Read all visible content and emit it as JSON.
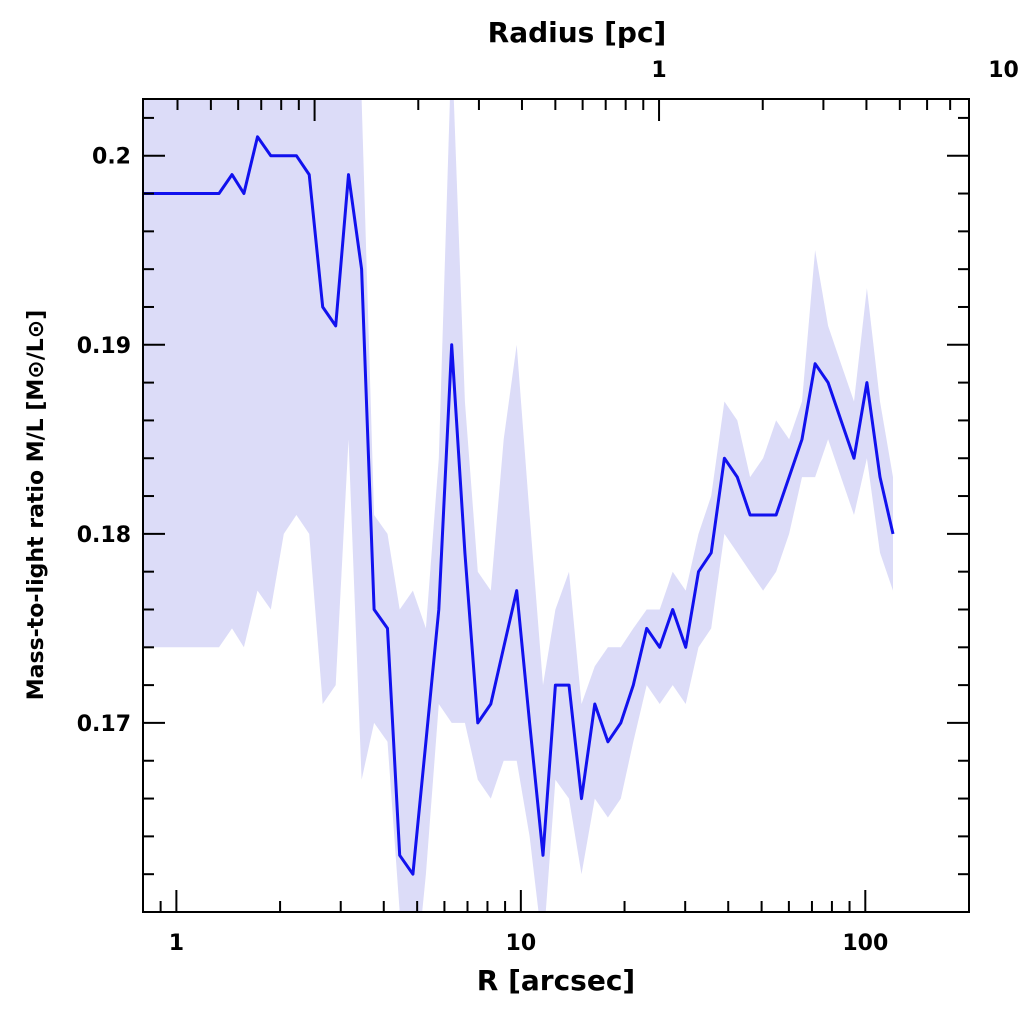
{
  "chart_data": {
    "type": "line",
    "xlabel": "R [arcsec]",
    "x2label": "Radius [pc]",
    "ylabel": "Mass-to-light ratio M/L [M⊙/L⊙]",
    "xscale": "log",
    "xlim": [
      0.8,
      200
    ],
    "ylim": [
      0.16,
      0.203
    ],
    "x2_factor": 0.0397,
    "x_ticks": [
      {
        "v": 1,
        "label": "1"
      },
      {
        "v": 10,
        "label": "10"
      },
      {
        "v": 100,
        "label": "100"
      }
    ],
    "x2_ticks": [
      {
        "v": 1,
        "label": "1"
      },
      {
        "v": 10,
        "label": "10"
      }
    ],
    "y_ticks": [
      {
        "v": 0.17,
        "label": "0.17"
      },
      {
        "v": 0.18,
        "label": "0.18"
      },
      {
        "v": 0.19,
        "label": "0.19"
      },
      {
        "v": 0.2,
        "label": "0.2"
      }
    ],
    "line_color": "#1111ee",
    "band_color": "#dcdcf8",
    "series": [
      {
        "x": [
          0.8,
          1.0,
          1.2,
          1.33,
          1.45,
          1.57,
          1.72,
          1.88,
          2.05,
          2.23,
          2.43,
          2.66,
          2.9,
          3.16,
          3.45,
          3.75,
          4.1,
          4.45,
          4.86,
          5.3,
          5.78,
          6.3,
          6.88,
          7.5,
          8.18,
          8.92,
          9.73,
          10.6,
          11.6,
          12.6,
          13.8,
          15.0,
          16.4,
          17.9,
          19.5,
          21.2,
          23.2,
          25.3,
          27.6,
          30.1,
          32.8,
          35.7,
          39.0,
          42.5,
          46.3,
          50.5,
          55.1,
          60.1,
          65.5,
          71.5,
          78.0,
          85.0,
          92.7,
          101.1,
          110.3,
          120.3
        ],
        "y": [
          0.198,
          0.198,
          0.198,
          0.198,
          0.199,
          0.198,
          0.201,
          0.2,
          0.2,
          0.2,
          0.199,
          0.192,
          0.191,
          0.199,
          0.194,
          0.176,
          0.175,
          0.163,
          0.162,
          0.169,
          0.176,
          0.19,
          0.179,
          0.17,
          0.171,
          0.174,
          0.177,
          0.17,
          0.163,
          0.172,
          0.172,
          0.166,
          0.171,
          0.169,
          0.17,
          0.172,
          0.175,
          0.174,
          0.176,
          0.174,
          0.178,
          0.179,
          0.184,
          0.183,
          0.181,
          0.181,
          0.181,
          0.183,
          0.185,
          0.189,
          0.188,
          0.186,
          0.184,
          0.188,
          0.183,
          0.18
        ],
        "lower": [
          0.174,
          0.174,
          0.174,
          0.174,
          0.175,
          0.174,
          0.177,
          0.176,
          0.18,
          0.181,
          0.18,
          0.171,
          0.172,
          0.185,
          0.167,
          0.17,
          0.169,
          0.16,
          0.155,
          0.162,
          0.171,
          0.17,
          0.17,
          0.167,
          0.166,
          0.168,
          0.168,
          0.164,
          0.158,
          0.167,
          0.166,
          0.162,
          0.166,
          0.165,
          0.166,
          0.169,
          0.172,
          0.171,
          0.172,
          0.171,
          0.174,
          0.175,
          0.18,
          0.179,
          0.178,
          0.177,
          0.178,
          0.18,
          0.183,
          0.183,
          0.185,
          0.183,
          0.181,
          0.184,
          0.179,
          0.177
        ],
        "upper": [
          0.203,
          0.203,
          0.203,
          0.203,
          0.203,
          0.203,
          0.203,
          0.203,
          0.203,
          0.203,
          0.203,
          0.203,
          0.203,
          0.203,
          0.203,
          0.181,
          0.18,
          0.176,
          0.177,
          0.175,
          0.184,
          0.206,
          0.187,
          0.178,
          0.177,
          0.185,
          0.19,
          0.181,
          0.172,
          0.176,
          0.178,
          0.171,
          0.173,
          0.174,
          0.174,
          0.175,
          0.176,
          0.176,
          0.178,
          0.177,
          0.18,
          0.182,
          0.187,
          0.186,
          0.183,
          0.184,
          0.186,
          0.185,
          0.187,
          0.195,
          0.191,
          0.189,
          0.187,
          0.193,
          0.187,
          0.183
        ]
      }
    ]
  }
}
